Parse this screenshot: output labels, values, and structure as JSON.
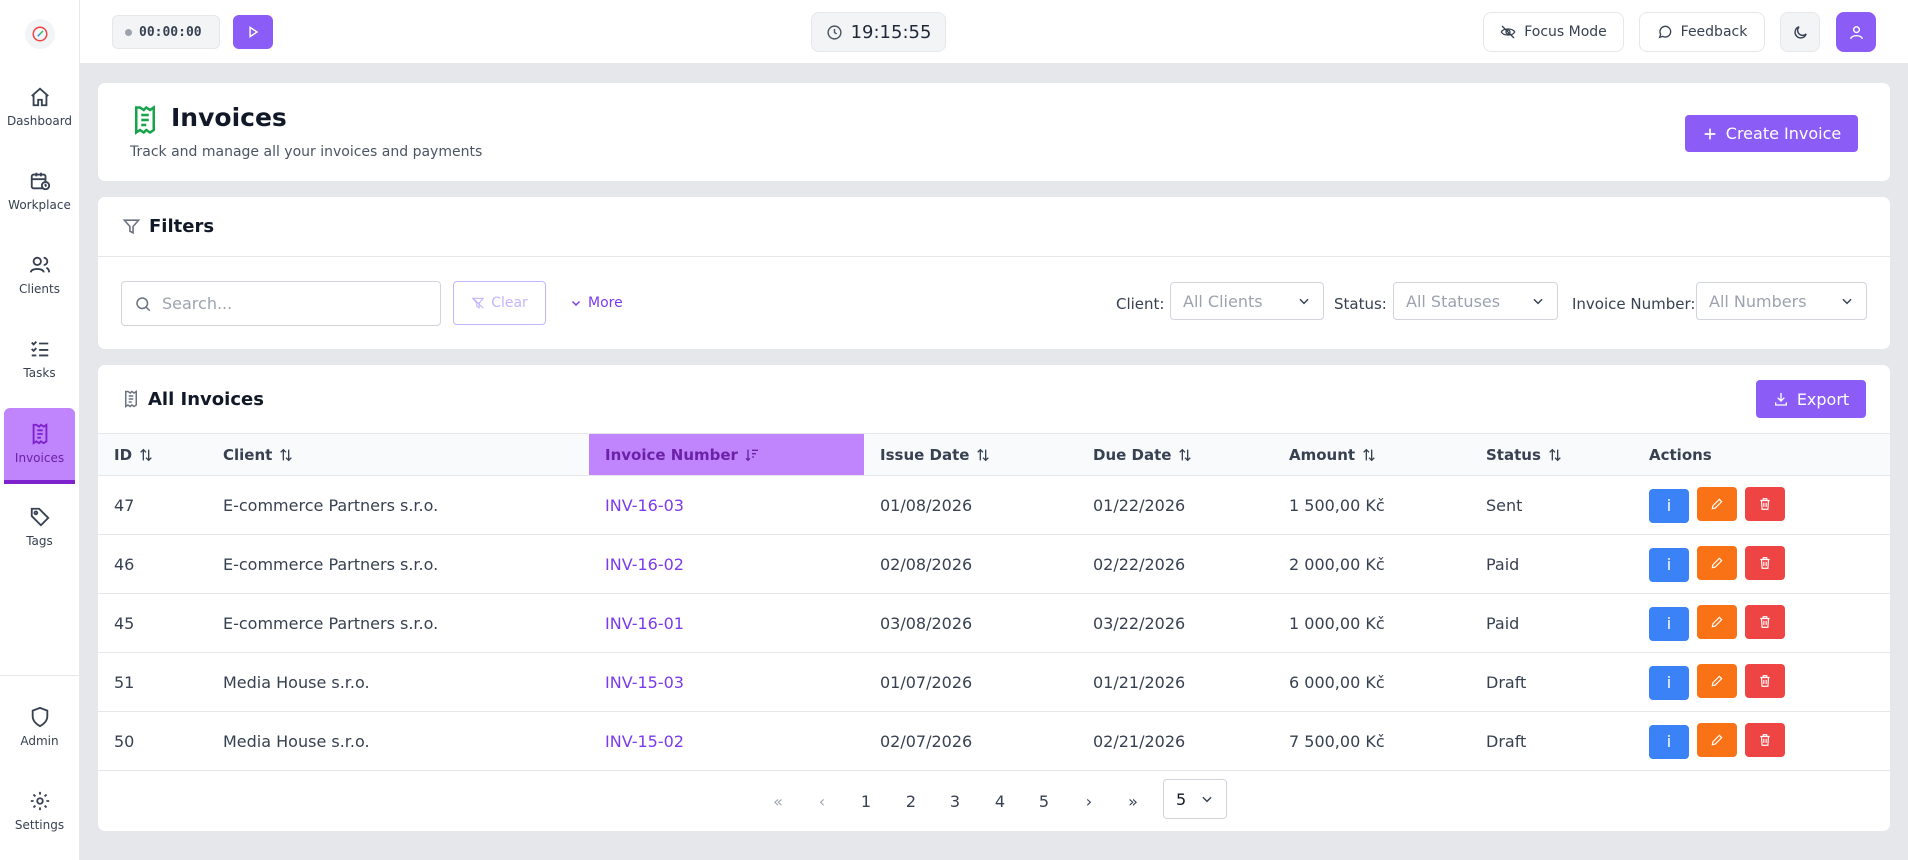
{
  "sidebar": {
    "items": [
      {
        "label": "Dashboard",
        "icon": "home-icon"
      },
      {
        "label": "Workplace",
        "icon": "calendar-clock-icon"
      },
      {
        "label": "Clients",
        "icon": "users-icon"
      },
      {
        "label": "Tasks",
        "icon": "list-checks-icon"
      },
      {
        "label": "Invoices",
        "icon": "receipt-icon",
        "active": true
      },
      {
        "label": "Tags",
        "icon": "tag-icon"
      },
      {
        "label": "Admin",
        "icon": "shield-icon"
      },
      {
        "label": "Settings",
        "icon": "gear-icon"
      }
    ]
  },
  "topbar": {
    "timer": "00:00:00",
    "clock": "19:15:55",
    "focus_mode": "Focus Mode",
    "feedback": "Feedback"
  },
  "header": {
    "title": "Invoices",
    "subtitle": "Track and manage all your invoices and payments",
    "create_button": "Create Invoice"
  },
  "filters": {
    "title": "Filters",
    "search_placeholder": "Search...",
    "clear": "Clear",
    "more": "More",
    "client_label": "Client:",
    "client_value": "All Clients",
    "status_label": "Status:",
    "status_value": "All Statuses",
    "number_label": "Invoice Number:",
    "number_value": "All Numbers"
  },
  "table": {
    "title": "All Invoices",
    "export": "Export",
    "columns": [
      "ID",
      "Client",
      "Invoice Number",
      "Issue Date",
      "Due Date",
      "Amount",
      "Status",
      "Actions"
    ],
    "sorted_column": "Invoice Number",
    "rows": [
      {
        "id": "47",
        "client": "E-commerce Partners s.r.o.",
        "number": "INV-16-03",
        "issue": "01/08/2026",
        "due": "01/22/2026",
        "amount": "1 500,00 Kč",
        "status": "Sent"
      },
      {
        "id": "46",
        "client": "E-commerce Partners s.r.o.",
        "number": "INV-16-02",
        "issue": "02/08/2026",
        "due": "02/22/2026",
        "amount": "2 000,00 Kč",
        "status": "Paid"
      },
      {
        "id": "45",
        "client": "E-commerce Partners s.r.o.",
        "number": "INV-16-01",
        "issue": "03/08/2026",
        "due": "03/22/2026",
        "amount": "1 000,00 Kč",
        "status": "Paid"
      },
      {
        "id": "51",
        "client": "Media House s.r.o.",
        "number": "INV-15-03",
        "issue": "01/07/2026",
        "due": "01/21/2026",
        "amount": "6 000,00 Kč",
        "status": "Draft"
      },
      {
        "id": "50",
        "client": "Media House s.r.o.",
        "number": "INV-15-02",
        "issue": "02/07/2026",
        "due": "02/21/2026",
        "amount": "7 500,00 Kč",
        "status": "Draft"
      }
    ],
    "info_label": "i"
  },
  "pagination": {
    "first": "«",
    "prev": "‹",
    "pages": [
      "1",
      "2",
      "3",
      "4",
      "5"
    ],
    "next": "›",
    "last": "»",
    "per_page": "5"
  },
  "colors": {
    "accent": "#8b5cf6",
    "active_nav": "#c084fc",
    "info": "#3b82f6",
    "edit": "#f97316",
    "delete": "#ef4444",
    "receipt_icon": "#16a34a"
  }
}
